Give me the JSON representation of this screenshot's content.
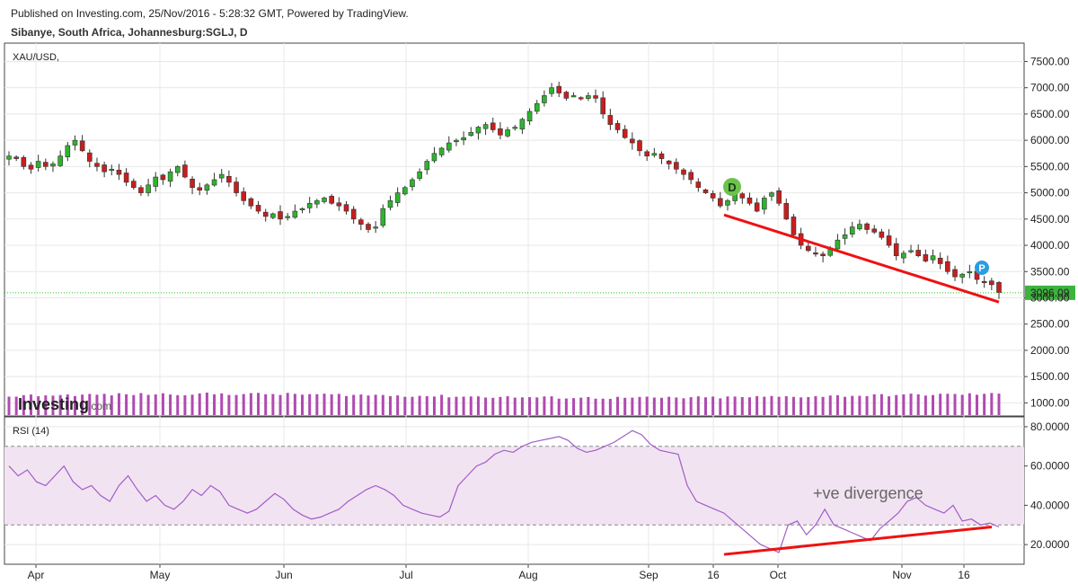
{
  "header": {
    "published": "Published on Investing.com, 25/Nov/2016 - 5:28:32 GMT, Powered by TradingView.",
    "instrument": "Sibanye, South Africa, Johannesburg:SGLJ, D"
  },
  "branding": {
    "logo_main": "Investing",
    "logo_suffix": ".com"
  },
  "colors": {
    "up": "#2db42d",
    "down": "#c81e1e",
    "volume": "#b04ab0",
    "trend_line": "#ee1111",
    "last_price_bg": "#3cb43c",
    "rsi_band": "#f2e3f2",
    "rsi_line": "#a05cc8",
    "grid": "#e8e8e8"
  },
  "markers": [
    {
      "letter": "D",
      "color": "#6cc24a"
    },
    {
      "letter": "P",
      "color": "#2a9de0"
    }
  ],
  "annotation_text": "+ve divergence",
  "chart_data": [
    {
      "type": "candlestick",
      "series_label": "XAU/USD,",
      "last_price": 3096.09,
      "last_price_label": "3096.09",
      "ylim": [
        750,
        7850
      ],
      "y_ticks": [
        1000,
        1500,
        2000,
        2500,
        3000,
        3500,
        4000,
        4500,
        5000,
        5500,
        6000,
        6500,
        7000,
        7500
      ],
      "y_tick_labels": [
        "1000.00",
        "1500.00",
        "2000.00",
        "2500.00",
        "3000.00",
        "3500.00",
        "4000.00",
        "4500.00",
        "5000.00",
        "5500.00",
        "6000.00",
        "6500.00",
        "7000.00",
        "7500.00"
      ],
      "close_path": [
        5700,
        5650,
        5500,
        5450,
        5600,
        5500,
        5550,
        5700,
        5900,
        6000,
        5800,
        5600,
        5500,
        5400,
        5450,
        5350,
        5200,
        5100,
        5000,
        5150,
        5300,
        5250,
        5400,
        5500,
        5300,
        5100,
        5050,
        5150,
        5250,
        5350,
        5200,
        5000,
        4850,
        4750,
        4650,
        4550,
        4600,
        4500,
        4550,
        4650,
        4700,
        4800,
        4850,
        4900,
        4800,
        4750,
        4650,
        4500,
        4400,
        4300,
        4350,
        4700,
        4850,
        5000,
        5100,
        5250,
        5400,
        5600,
        5750,
        5850,
        5950,
        6000,
        6050,
        6150,
        6250,
        6300,
        6200,
        6100,
        6200,
        6250,
        6400,
        6550,
        6700,
        6850,
        7000,
        6900,
        6800,
        6850,
        6800,
        6850,
        6800,
        6500,
        6300,
        6200,
        6050,
        5950,
        5800,
        5700,
        5750,
        5650,
        5550,
        5450,
        5350,
        5250,
        5100,
        5000,
        4900,
        4750,
        4850,
        5000,
        4900,
        4800,
        4650,
        4900,
        5000,
        4800,
        4500,
        4200,
        4000,
        3900,
        3850,
        3800,
        3950,
        4100,
        4200,
        4350,
        4400,
        4300,
        4250,
        4150,
        4000,
        3800,
        3850,
        3900,
        3800,
        3700,
        3800,
        3650,
        3500,
        3400,
        3450,
        3500,
        3350,
        3300,
        3250,
        3100
      ]
    },
    {
      "type": "bar",
      "series_label": "Volume",
      "values_relative": [
        0.52,
        0.65
      ]
    },
    {
      "type": "line",
      "series_label": "RSI (14)",
      "ylim": [
        10,
        85
      ],
      "upper_band": 70,
      "lower_band": 30,
      "y_ticks": [
        20,
        40,
        60,
        80
      ],
      "y_tick_labels": [
        "20.0000",
        "40.0000",
        "60.0000",
        "80.0000"
      ],
      "values": [
        60,
        55,
        58,
        52,
        50,
        55,
        60,
        52,
        48,
        50,
        45,
        42,
        50,
        55,
        48,
        42,
        45,
        40,
        38,
        42,
        48,
        45,
        50,
        47,
        40,
        38,
        36,
        38,
        42,
        46,
        43,
        38,
        35,
        33,
        34,
        36,
        38,
        42,
        45,
        48,
        50,
        48,
        45,
        40,
        38,
        36,
        35,
        34,
        37,
        50,
        55,
        60,
        62,
        66,
        68,
        67,
        70,
        72,
        73,
        74,
        75,
        73,
        69,
        67,
        68,
        70,
        72,
        75,
        78,
        76,
        71,
        68,
        67,
        66,
        50,
        42,
        40,
        38,
        36,
        32,
        28,
        24,
        20,
        18,
        16,
        30,
        32,
        25,
        30,
        38,
        30,
        28,
        26,
        24,
        22,
        28,
        32,
        36,
        42,
        44,
        40,
        38,
        36,
        40,
        32,
        33,
        30,
        31,
        29
      ]
    }
  ],
  "time_axis": {
    "labels": [
      "Apr",
      "May",
      "Jun",
      "Jul",
      "Aug",
      "Sep",
      "16",
      "Oct",
      "Nov",
      "16"
    ]
  }
}
